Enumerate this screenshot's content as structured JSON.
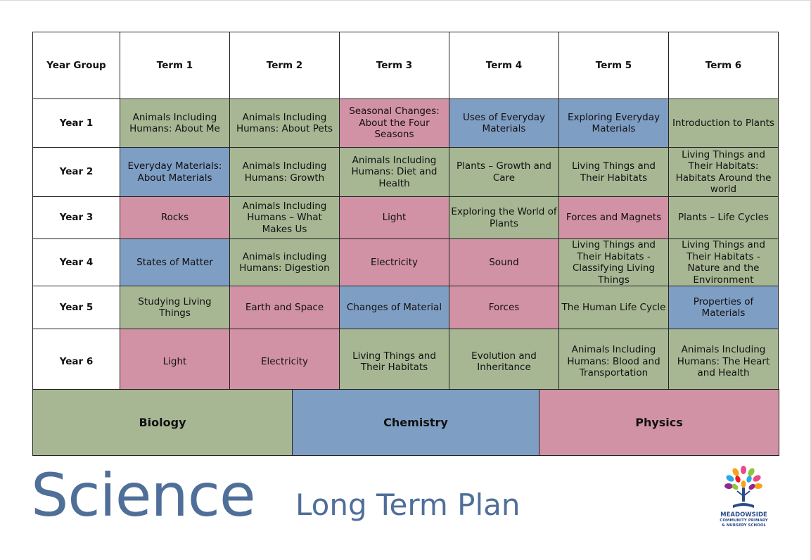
{
  "table": {
    "headers": [
      "Year Group",
      "Term 1",
      "Term 2",
      "Term 3",
      "Term 4",
      "Term 5",
      "Term 6"
    ],
    "rows": [
      {
        "year": "Year 1",
        "cells": [
          {
            "text": "Animals Including Humans: About Me",
            "category": "bio"
          },
          {
            "text": "Animals Including Humans: About Pets",
            "category": "bio"
          },
          {
            "text": "Seasonal Changes: About the Four Seasons",
            "category": "phys"
          },
          {
            "text": "Uses of Everyday Materials",
            "category": "chem"
          },
          {
            "text": "Exploring Everyday Materials",
            "category": "chem"
          },
          {
            "text": "Introduction to Plants",
            "category": "bio"
          }
        ]
      },
      {
        "year": "Year 2",
        "cells": [
          {
            "text": "Everyday Materials: About Materials",
            "category": "chem"
          },
          {
            "text": "Animals Including Humans: Growth",
            "category": "bio"
          },
          {
            "text": "Animals Including Humans: Diet and Health",
            "category": "bio"
          },
          {
            "text": "Plants – Growth and Care",
            "category": "bio"
          },
          {
            "text": "Living Things and Their Habitats",
            "category": "bio"
          },
          {
            "text": "Living Things and Their Habitats: Habitats Around the world",
            "category": "bio"
          }
        ]
      },
      {
        "year": "Year 3",
        "cells": [
          {
            "text": "Rocks",
            "category": "phys"
          },
          {
            "text": "Animals Including Humans – What Makes Us",
            "category": "bio"
          },
          {
            "text": "Light",
            "category": "phys"
          },
          {
            "text": "Exploring the World of Plants",
            "category": "bio"
          },
          {
            "text": "Forces and Magnets",
            "category": "phys"
          },
          {
            "text": "Plants – Life Cycles",
            "category": "bio"
          }
        ]
      },
      {
        "year": "Year 4",
        "cells": [
          {
            "text": "States of Matter",
            "category": "chem"
          },
          {
            "text": "Animals including Humans: Digestion",
            "category": "bio"
          },
          {
            "text": "Electricity",
            "category": "phys"
          },
          {
            "text": "Sound",
            "category": "phys"
          },
          {
            "text": "Living Things and Their Habitats - Classifying Living Things",
            "category": "bio"
          },
          {
            "text": "Living Things and Their Habitats - Nature and the Environment",
            "category": "bio"
          }
        ]
      },
      {
        "year": "Year 5",
        "cells": [
          {
            "text": "Studying Living Things",
            "category": "bio"
          },
          {
            "text": "Earth and Space",
            "category": "phys"
          },
          {
            "text": "Changes of Material",
            "category": "chem"
          },
          {
            "text": "Forces",
            "category": "phys"
          },
          {
            "text": "The Human Life Cycle",
            "category": "bio"
          },
          {
            "text": "Properties of Materials",
            "category": "chem"
          }
        ]
      },
      {
        "year": "Year 6",
        "cells": [
          {
            "text": "Light",
            "category": "phys"
          },
          {
            "text": "Electricity",
            "category": "phys"
          },
          {
            "text": "Living Things and Their Habitats",
            "category": "bio"
          },
          {
            "text": "Evolution and Inheritance",
            "category": "bio"
          },
          {
            "text": "Animals Including Humans: Blood and Transportation",
            "category": "bio"
          },
          {
            "text": "Animals Including Humans: The Heart and Health",
            "category": "bio"
          }
        ]
      }
    ]
  },
  "legend": {
    "biology": "Biology",
    "chemistry": "Chemistry",
    "physics": "Physics"
  },
  "colors": {
    "biology": "#a7b793",
    "chemistry": "#7f9ec4",
    "physics": "#d292a6",
    "title": "#4f6f99"
  },
  "title": {
    "main": "Science",
    "sub": "Long Term Plan"
  },
  "logo": {
    "name": "MEADOWSIDE",
    "line1": "COMMUNITY PRIMARY",
    "line2": "& NURSERY SCHOOL"
  }
}
